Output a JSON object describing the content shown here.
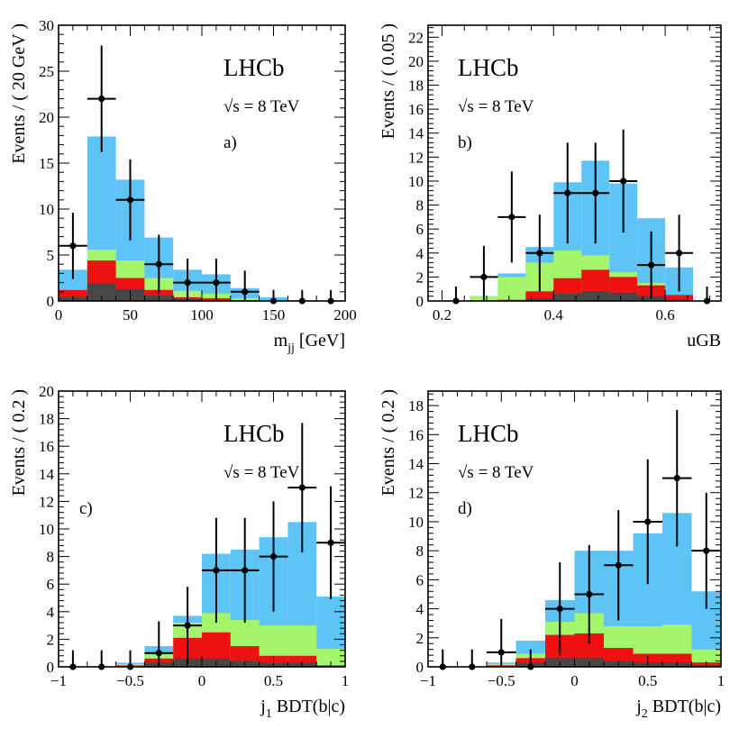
{
  "colors": {
    "light_blue": "#5ec4f5",
    "light_green": "#a4f56c",
    "red": "#ee1111",
    "dark_grey": "#474747",
    "data": "#000000"
  },
  "chart_data": [
    {
      "type": "bar",
      "panel_label": "a)",
      "experiment": "LHCb",
      "energy_label": "√s = 8 TeV",
      "ylabel": "Events / ( 20 GeV )",
      "xlabel": "m_jj [GeV]",
      "xlim": [
        0,
        200
      ],
      "ylim": [
        0,
        30
      ],
      "x_ticks": [
        0,
        50,
        100,
        150,
        200
      ],
      "y_ticks": [
        0,
        5,
        10,
        15,
        20,
        25,
        30
      ],
      "bin_edges": [
        0,
        20,
        40,
        60,
        80,
        100,
        120,
        140,
        160,
        180
      ],
      "stack": [
        {
          "name": "light blue",
          "color": "#5ec4f5",
          "values": [
            3.4,
            17.9,
            13.2,
            6.9,
            3.4,
            2.9,
            1.4,
            0.4,
            0.1
          ]
        },
        {
          "name": "light green",
          "color": "#a4f56c",
          "values": [
            1.2,
            5.6,
            4.4,
            2.5,
            1.1,
            0.8,
            0.3,
            0.1,
            0.0
          ]
        },
        {
          "name": "red",
          "color": "#ee1111",
          "values": [
            1.2,
            4.4,
            2.5,
            1.2,
            0.4,
            0.3,
            0.1,
            0.0,
            0.0
          ]
        },
        {
          "name": "dark grey",
          "color": "#474747",
          "values": [
            0.4,
            1.9,
            1.3,
            0.6,
            0.2,
            0.1,
            0.0,
            0.0,
            0.0
          ]
        }
      ],
      "data_points": [
        {
          "x": 10,
          "y": 6,
          "err": 3.6
        },
        {
          "x": 30,
          "y": 22,
          "err": 5.8
        },
        {
          "x": 50,
          "y": 11,
          "err": 4.4
        },
        {
          "x": 70,
          "y": 4,
          "err": 3.2
        },
        {
          "x": 90,
          "y": 2,
          "err": 2.6
        },
        {
          "x": 110,
          "y": 2,
          "err": 2.6
        },
        {
          "x": 130,
          "y": 1,
          "err": 2.3
        },
        {
          "x": 150,
          "y": 0,
          "err": 1.2
        },
        {
          "x": 170,
          "y": 0,
          "err": 1.2
        },
        {
          "x": 190,
          "y": 0,
          "err": 1.2
        }
      ]
    },
    {
      "type": "bar",
      "panel_label": "b)",
      "experiment": "LHCb",
      "energy_label": "√s = 8 TeV",
      "ylabel": "Events / ( 0.05 )",
      "xlabel": "uGB",
      "xlim": [
        0.175,
        0.7
      ],
      "ylim": [
        0,
        23
      ],
      "x_ticks": [
        0.2,
        0.4,
        0.6
      ],
      "y_ticks": [
        0,
        2,
        4,
        6,
        8,
        10,
        12,
        14,
        16,
        18,
        20,
        22
      ],
      "bin_edges": [
        0.25,
        0.3,
        0.35,
        0.4,
        0.45,
        0.5,
        0.55,
        0.6,
        0.65
      ],
      "stack": [
        {
          "name": "light blue",
          "color": "#5ec4f5",
          "values": [
            0.4,
            2.3,
            4.5,
            9.9,
            11.7,
            9.8,
            6.9,
            2.8
          ]
        },
        {
          "name": "light green",
          "color": "#a4f56c",
          "values": [
            0.4,
            2.0,
            3.2,
            4.2,
            3.8,
            2.4,
            1.5,
            0.4
          ]
        },
        {
          "name": "red",
          "color": "#ee1111",
          "values": [
            0.0,
            0.1,
            0.8,
            1.9,
            2.6,
            2.0,
            1.3,
            0.5
          ]
        },
        {
          "name": "dark grey",
          "color": "#474747",
          "values": [
            0.0,
            0.0,
            0.2,
            0.6,
            0.8,
            0.7,
            0.4,
            0.1
          ]
        }
      ],
      "data_points": [
        {
          "x": 0.225,
          "y": 0,
          "err": 1.2
        },
        {
          "x": 0.275,
          "y": 2,
          "err": 2.6
        },
        {
          "x": 0.325,
          "y": 7,
          "err": 3.8
        },
        {
          "x": 0.375,
          "y": 4,
          "err": 3.2
        },
        {
          "x": 0.425,
          "y": 9,
          "err": 4.2
        },
        {
          "x": 0.475,
          "y": 9,
          "err": 4.2
        },
        {
          "x": 0.525,
          "y": 10,
          "err": 4.3
        },
        {
          "x": 0.575,
          "y": 3,
          "err": 2.8
        },
        {
          "x": 0.625,
          "y": 4,
          "err": 3.2
        },
        {
          "x": 0.675,
          "y": 0,
          "err": 1.2
        }
      ]
    },
    {
      "type": "bar",
      "panel_label": "c)",
      "experiment": "LHCb",
      "energy_label": "√s = 8 TeV",
      "ylabel": "Events / ( 0.2 )",
      "xlabel": "j_1 BDT(b|c)",
      "xlim": [
        -1,
        1
      ],
      "ylim": [
        0,
        20
      ],
      "x_ticks": [
        -1,
        -0.5,
        0,
        0.5,
        1
      ],
      "y_ticks": [
        0,
        2,
        4,
        6,
        8,
        10,
        12,
        14,
        16,
        18,
        20
      ],
      "bin_edges": [
        -0.6,
        -0.4,
        -0.2,
        0.0,
        0.2,
        0.4,
        0.6,
        0.8,
        1.0
      ],
      "stack": [
        {
          "name": "light blue",
          "color": "#5ec4f5",
          "values": [
            0.3,
            1.5,
            3.7,
            8.2,
            8.5,
            9.4,
            10.5,
            5.1
          ]
        },
        {
          "name": "light green",
          "color": "#a4f56c",
          "values": [
            0.2,
            0.9,
            3.2,
            3.9,
            3.4,
            3.0,
            3.0,
            1.3
          ]
        },
        {
          "name": "red",
          "color": "#ee1111",
          "values": [
            0.1,
            0.6,
            2.1,
            2.5,
            1.5,
            0.8,
            0.8,
            0.1
          ]
        },
        {
          "name": "dark grey",
          "color": "#474747",
          "values": [
            0.0,
            0.3,
            0.6,
            0.6,
            0.4,
            0.3,
            0.3,
            0.1
          ]
        }
      ],
      "data_points": [
        {
          "x": -0.9,
          "y": 0,
          "err": 1.2
        },
        {
          "x": -0.7,
          "y": 0,
          "err": 1.2
        },
        {
          "x": -0.5,
          "y": 0,
          "err": 1.2
        },
        {
          "x": -0.3,
          "y": 1,
          "err": 2.3
        },
        {
          "x": -0.1,
          "y": 3,
          "err": 2.8
        },
        {
          "x": 0.1,
          "y": 7,
          "err": 3.8
        },
        {
          "x": 0.3,
          "y": 7,
          "err": 3.8
        },
        {
          "x": 0.5,
          "y": 8,
          "err": 4.0
        },
        {
          "x": 0.7,
          "y": 13,
          "err": 4.7
        },
        {
          "x": 0.9,
          "y": 9,
          "err": 4.1
        }
      ]
    },
    {
      "type": "bar",
      "panel_label": "d)",
      "experiment": "LHCb",
      "energy_label": "√s = 8 TeV",
      "ylabel": "Events / ( 0.2 )",
      "xlabel": "j_2 BDT(b|c)",
      "xlim": [
        -1,
        1
      ],
      "ylim": [
        0,
        19
      ],
      "x_ticks": [
        -1,
        -0.5,
        0,
        0.5,
        1
      ],
      "y_ticks": [
        0,
        2,
        4,
        6,
        8,
        10,
        12,
        14,
        16,
        18
      ],
      "bin_edges": [
        -0.6,
        -0.4,
        -0.2,
        0.0,
        0.2,
        0.4,
        0.6,
        0.8,
        1.0
      ],
      "stack": [
        {
          "name": "light blue",
          "color": "#5ec4f5",
          "values": [
            0.3,
            1.8,
            4.6,
            8.0,
            8.0,
            9.2,
            10.6,
            5.2
          ]
        },
        {
          "name": "light green",
          "color": "#a4f56c",
          "values": [
            0.2,
            0.9,
            3.1,
            3.7,
            2.8,
            2.8,
            2.9,
            1.2
          ]
        },
        {
          "name": "red",
          "color": "#ee1111",
          "values": [
            0.1,
            0.6,
            2.2,
            2.3,
            1.3,
            0.9,
            0.9,
            0.3
          ]
        },
        {
          "name": "dark grey",
          "color": "#474747",
          "values": [
            0.0,
            0.3,
            0.6,
            0.6,
            0.4,
            0.3,
            0.3,
            0.1
          ]
        }
      ],
      "data_points": [
        {
          "x": -0.9,
          "y": 0,
          "err": 1.2
        },
        {
          "x": -0.7,
          "y": 0,
          "err": 1.2
        },
        {
          "x": -0.5,
          "y": 1,
          "err": 2.3
        },
        {
          "x": -0.3,
          "y": 0,
          "err": 1.2
        },
        {
          "x": -0.1,
          "y": 4,
          "err": 3.2
        },
        {
          "x": 0.1,
          "y": 5,
          "err": 3.4
        },
        {
          "x": 0.3,
          "y": 7,
          "err": 3.8
        },
        {
          "x": 0.5,
          "y": 10,
          "err": 4.3
        },
        {
          "x": 0.7,
          "y": 13,
          "err": 4.7
        },
        {
          "x": 0.9,
          "y": 8,
          "err": 4.0
        }
      ]
    }
  ]
}
